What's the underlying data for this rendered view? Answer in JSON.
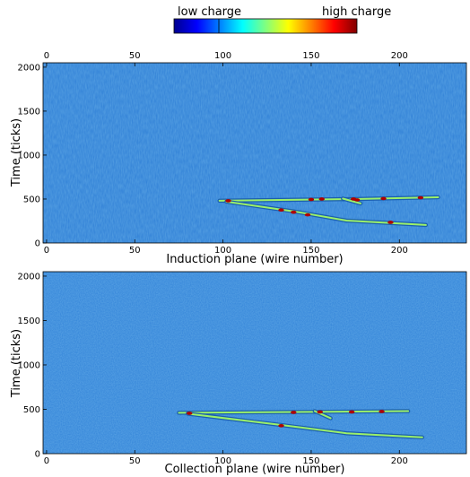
{
  "colorbar": {
    "low_label": "low charge",
    "high_label": "high charge",
    "stops": [
      "#00008f",
      "#0000ff",
      "#0080ff",
      "#00ffff",
      "#80ff80",
      "#ffff00",
      "#ff8000",
      "#ff0000",
      "#800000"
    ]
  },
  "colors": {
    "background": "#2f7fd6",
    "track": "#9bf06a",
    "hit": "#b00000",
    "hit_dark": "#101010"
  },
  "chart_data": [
    {
      "type": "heatmap",
      "panel": "induction",
      "xlabel": "Induction plane (wire number)",
      "ylabel": "Time (ticks)",
      "xlim": [
        -2,
        238
      ],
      "ylim": [
        0,
        2050
      ],
      "x_ticks": [
        0,
        50,
        100,
        150,
        200
      ],
      "x_ticks_top": [
        0,
        50,
        100,
        150,
        200
      ],
      "y_ticks": [
        0,
        500,
        1000,
        1500,
        2000
      ],
      "tracks": [
        {
          "points": [
            [
              98,
              480
            ],
            [
              175,
              500
            ],
            [
              222,
              520
            ]
          ]
        },
        {
          "points": [
            [
              102,
              470
            ],
            [
              140,
              360
            ],
            [
              170,
              255
            ],
            [
              215,
              205
            ]
          ]
        },
        {
          "points": [
            [
              168,
              505
            ],
            [
              178,
              450
            ]
          ]
        }
      ],
      "hits": [
        [
          103,
          480
        ],
        [
          133,
          375
        ],
        [
          140,
          350
        ],
        [
          148,
          320
        ],
        [
          150,
          495
        ],
        [
          156,
          500
        ],
        [
          174,
          500
        ],
        [
          176,
          490
        ],
        [
          191,
          505
        ],
        [
          195,
          235
        ],
        [
          212,
          515
        ]
      ]
    },
    {
      "type": "heatmap",
      "panel": "collection",
      "xlabel": "Collection plane (wire number)",
      "ylabel": "Time (ticks)",
      "xlim": [
        -2,
        238
      ],
      "ylim": [
        0,
        2050
      ],
      "x_ticks": [
        0,
        50,
        100,
        150,
        200
      ],
      "y_ticks": [
        0,
        500,
        1000,
        1500,
        2000
      ],
      "tracks": [
        {
          "points": [
            [
              75,
              460
            ],
            [
              140,
              470
            ],
            [
              205,
              480
            ]
          ]
        },
        {
          "points": [
            [
              80,
              450
            ],
            [
              130,
              330
            ],
            [
              170,
              230
            ],
            [
              213,
              185
            ]
          ]
        },
        {
          "points": [
            [
              152,
              480
            ],
            [
              161,
              400
            ]
          ]
        }
      ],
      "hits": [
        [
          81,
          455
        ],
        [
          133,
          315
        ],
        [
          140,
          465
        ],
        [
          155,
          470
        ],
        [
          173,
          470
        ],
        [
          190,
          475
        ]
      ]
    }
  ]
}
